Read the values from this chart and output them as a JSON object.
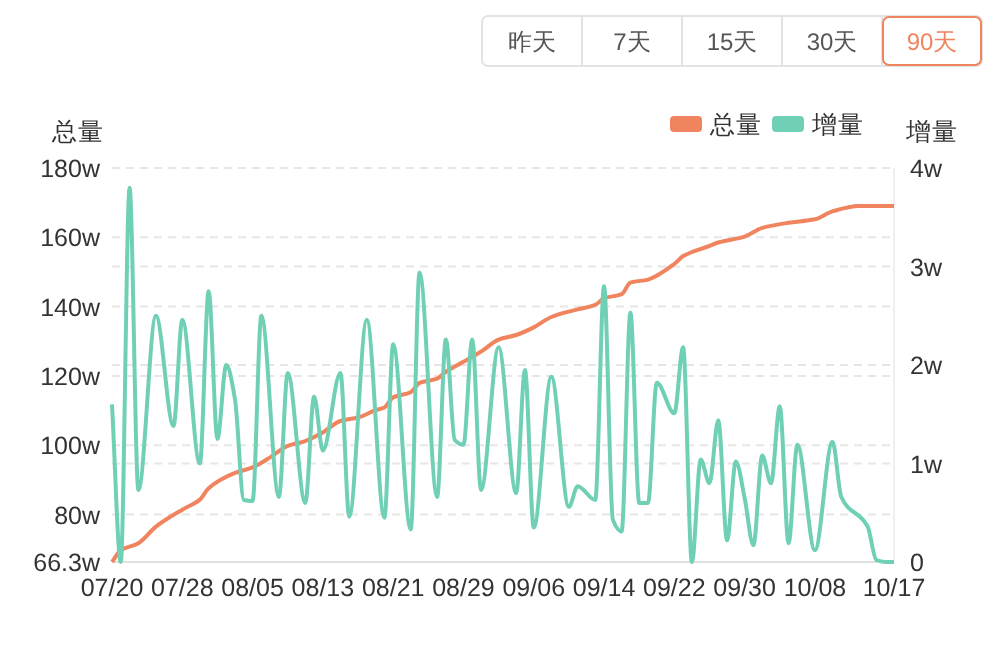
{
  "chart_data": [
    {
      "type": "other",
      "annotations": [
        "昨天",
        "7天",
        "15天",
        "30天",
        "90天"
      ],
      "colors": [
        "#555555",
        "#555555",
        "#555555",
        "#555555",
        "#f0845e"
      ]
    },
    {
      "type": "line",
      "legend": "top right",
      "grid": "y",
      "ylabel": "总量",
      "y2label": "增量",
      "xlim": [
        "--07-20",
        "--10-17"
      ],
      "xticks": [
        {
          "value": "--07-20",
          "label": "07/20"
        },
        {
          "value": "--07-28",
          "label": "07/28"
        },
        {
          "value": "--08-05",
          "label": "08/05"
        },
        {
          "value": "--08-13",
          "label": "08/13"
        },
        {
          "value": "--08-21",
          "label": "08/21"
        },
        {
          "value": "--08-29",
          "label": "08/29"
        },
        {
          "value": "--09-06",
          "label": "09/06"
        },
        {
          "value": "--09-14",
          "label": "09/14"
        },
        {
          "value": "--09-22",
          "label": "09/22"
        },
        {
          "value": "--09-30",
          "label": "09/30"
        },
        {
          "value": "--10-08",
          "label": "10/08"
        },
        {
          "value": "--10-17",
          "label": "10/17"
        }
      ],
      "ylim": [
        66.3,
        180
      ],
      "yticks": [
        {
          "value": 66.3,
          "label": "66.3w"
        },
        {
          "value": 80,
          "label": "80w"
        },
        {
          "value": 100,
          "label": "100w"
        },
        {
          "value": 120,
          "label": "120w"
        },
        {
          "value": 140,
          "label": "140w"
        },
        {
          "value": 160,
          "label": "160w"
        },
        {
          "value": 180,
          "label": "180w"
        }
      ],
      "y2lim": [
        0,
        4
      ],
      "y2ticks": [
        {
          "value": 0,
          "label": "0"
        },
        {
          "value": 1,
          "label": "1w"
        },
        {
          "value": 2,
          "label": "2w"
        },
        {
          "value": 3,
          "label": "3w"
        },
        {
          "value": 4,
          "label": "4w"
        }
      ],
      "series": [
        {
          "name": "总量",
          "color": "#f0845e",
          "x": [
            "--07-20",
            "--07-21",
            "--07-23",
            "--07-25",
            "--07-28",
            "--07-30",
            "--07-31",
            "--08-03",
            "--08-05",
            "--08-07",
            "--08-09",
            "--08-11",
            "--08-13",
            "--08-15",
            "--08-17",
            "--08-19",
            "--08-20",
            "--08-21",
            "--08-23",
            "--08-24",
            "--08-26",
            "--08-27",
            "--08-29",
            "--08-31",
            "--09-02",
            "--09-04",
            "--09-06",
            "--09-08",
            "--09-11",
            "--09-13",
            "--09-14",
            "--09-16",
            "--09-17",
            "--09-19",
            "--09-22",
            "--09-23",
            "--09-26",
            "--09-27",
            "--09-30",
            "--10-02",
            "--10-05",
            "--10-08",
            "--10-10",
            "--10-13",
            "--10-16",
            "--10-17"
          ],
          "values": [
            66.3,
            69.7,
            71.7,
            76.5,
            81.4,
            84.3,
            87.6,
            92,
            93.6,
            96.5,
            99.8,
            101.2,
            103.7,
            107,
            108,
            110.1,
            110.9,
            113.8,
            115.3,
            118,
            119.2,
            121.2,
            124.1,
            127,
            130.5,
            131.8,
            134,
            137,
            139.2,
            140.5,
            142.4,
            143.6,
            146.9,
            147.8,
            152.3,
            154.6,
            157.5,
            158.5,
            160.2,
            162.7,
            164.2,
            165.2,
            167.5,
            169,
            169,
            169
          ]
        },
        {
          "name": "增量",
          "color": "#6fd0b5",
          "axis": "y2",
          "x": [
            "--07-20",
            "--07-21",
            "--07-22",
            "--07-23",
            "--07-25",
            "--07-27",
            "--07-28",
            "--07-30",
            "--07-31",
            "--08-01",
            "--08-02",
            "--08-03",
            "--08-04",
            "--08-05",
            "--08-06",
            "--08-08",
            "--08-09",
            "--08-11",
            "--08-12",
            "--08-13",
            "--08-15",
            "--08-16",
            "--08-18",
            "--08-20",
            "--08-21",
            "--08-23",
            "--08-24",
            "--08-26",
            "--08-27",
            "--08-28",
            "--08-29",
            "--08-30",
            "--08-31",
            "--09-02",
            "--09-04",
            "--09-05",
            "--09-06",
            "--09-08",
            "--09-10",
            "--09-11",
            "--09-13",
            "--09-14",
            "--09-15",
            "--09-16",
            "--09-17",
            "--09-18",
            "--09-19",
            "--09-20",
            "--09-22",
            "--09-23",
            "--09-24",
            "--09-25",
            "--09-26",
            "--09-27",
            "--09-28",
            "--09-29",
            "--09-30",
            "--10-01",
            "--10-02",
            "--10-03",
            "--10-04",
            "--10-05",
            "--10-06",
            "--10-08",
            "--10-10",
            "--10-11",
            "--10-14",
            "--10-15",
            "--10-16",
            "--10-17"
          ],
          "values": [
            1.6,
            0,
            3.8,
            0.73,
            2.5,
            1.38,
            2.46,
            1.0,
            2.75,
            1.25,
            2.0,
            1.65,
            0.63,
            0.62,
            2.5,
            0.66,
            1.92,
            0.6,
            1.68,
            1.13,
            1.92,
            0.46,
            2.46,
            0.45,
            2.21,
            0.33,
            2.94,
            0.66,
            2.26,
            1.24,
            1.19,
            2.26,
            0.73,
            2.18,
            0.7,
            1.95,
            0.35,
            1.88,
            0.56,
            0.77,
            0.63,
            2.8,
            0.43,
            0.31,
            2.53,
            0.6,
            0.6,
            1.82,
            1.51,
            2.18,
            0,
            1.04,
            0.8,
            1.44,
            0.22,
            1.02,
            0.65,
            0.17,
            1.08,
            0.8,
            1.58,
            0.19,
            1.19,
            0.12,
            1.22,
            0.66,
            0.36,
            0.02,
            0,
            0
          ]
        }
      ]
    }
  ]
}
